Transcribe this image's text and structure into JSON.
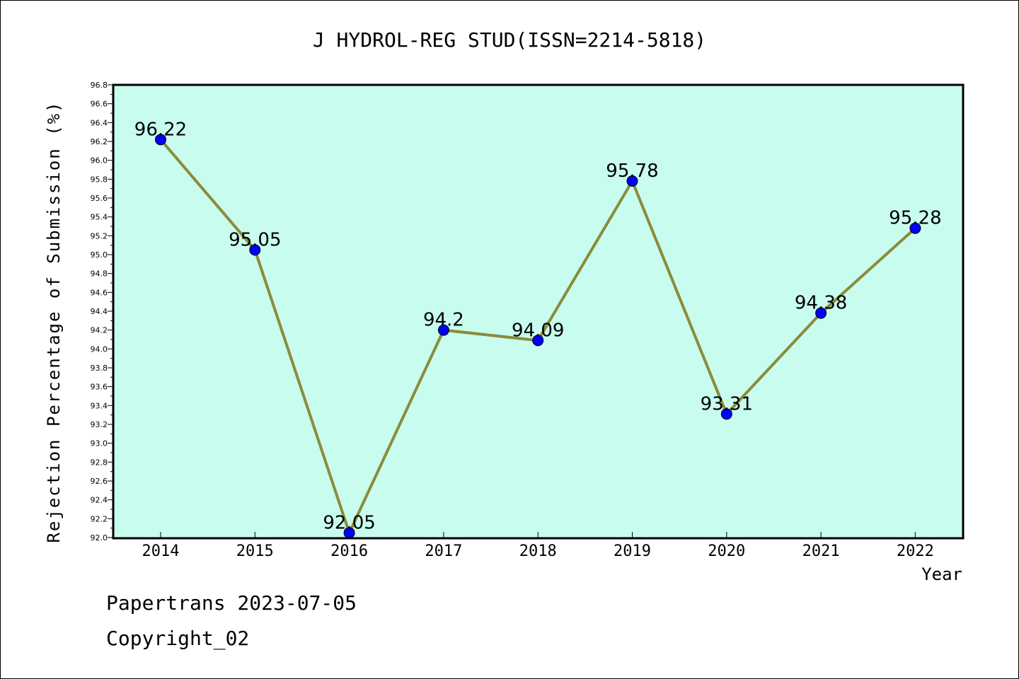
{
  "chart_data": {
    "type": "line",
    "title": "J HYDROL-REG STUD(ISSN=2214-5818)",
    "xlabel": "Year",
    "ylabel": "Rejection Percentage of Submission (%)",
    "categories": [
      "2014",
      "2015",
      "2016",
      "2017",
      "2018",
      "2019",
      "2020",
      "2021",
      "2022"
    ],
    "values": [
      96.22,
      95.05,
      92.05,
      94.2,
      94.09,
      95.78,
      93.31,
      94.38,
      95.28
    ],
    "data_labels": [
      "96.22",
      "95.05",
      "92.05",
      "94.2",
      "94.09",
      "95.78",
      "93.31",
      "94.38",
      "95.28"
    ],
    "ylim": [
      92.0,
      96.8
    ],
    "y_major_step": 0.2,
    "y_tick_labels": [
      "92.0",
      "92.2",
      "92.4",
      "92.6",
      "92.8",
      "93.0",
      "93.2",
      "93.4",
      "93.6",
      "93.8",
      "94.0",
      "94.2",
      "94.4",
      "94.6",
      "94.8",
      "95.0",
      "95.2",
      "95.4",
      "95.6",
      "95.8",
      "96.0",
      "96.2",
      "96.4",
      "96.6",
      "96.8"
    ],
    "grid": false,
    "colors": {
      "plot_background": "#c8fcee",
      "line": "#8b8b3a",
      "marker": "#0000ff"
    }
  },
  "footer": {
    "line1": "Papertrans 2023-07-05",
    "line2": "Copyright_02"
  }
}
